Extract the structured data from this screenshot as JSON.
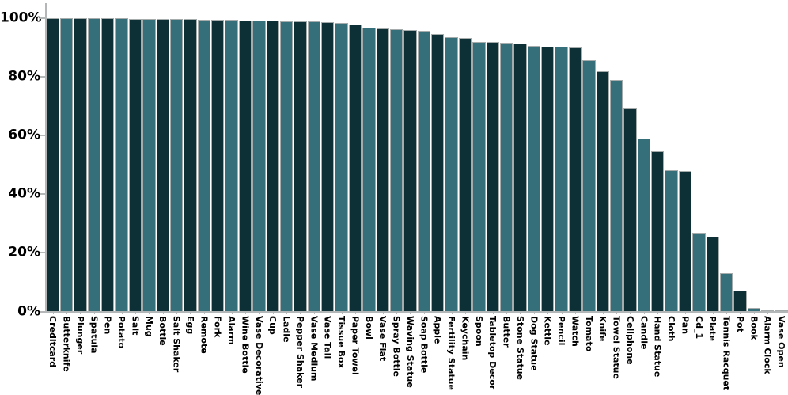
{
  "chart_data": {
    "type": "bar",
    "title": "",
    "xlabel": "",
    "ylabel": "",
    "ylim": [
      0,
      100
    ],
    "grid": false,
    "legend": false,
    "ytick_values": [
      0,
      20,
      40,
      60,
      80,
      100
    ],
    "ytick_labels": [
      "0%",
      "20%",
      "40%",
      "60%",
      "80%",
      "100%"
    ],
    "categories": [
      "Creditcard",
      "Butterknife",
      "Plunger",
      "Spatula",
      "Pen",
      "Potato",
      "Salt",
      "Mug",
      "Bottle",
      "Salt Shaker",
      "Egg",
      "Remote",
      "Fork",
      "Alarm",
      "Wine Bottle",
      "Vase Decorative",
      "Cup",
      "Ladle",
      "Pepper Shaker",
      "Vase Medium",
      "Vase Tall",
      "Tissue Box",
      "Paper Towel",
      "Bowl",
      "Vase Flat",
      "Spray Bottle",
      "Waving Statue",
      "Soap Bottle",
      "Apple",
      "Fertility Statue",
      "Keychain",
      "Spoon",
      "Tabletop Decor",
      "Butter",
      "Stone Statue",
      "Dog Statue",
      "Kettle",
      "Pencil",
      "Watch",
      "Tomato",
      "Knife",
      "Towel Statue",
      "Cellphone",
      "Candle",
      "Hand Statue",
      "Cloth",
      "Pan",
      "Cd_1",
      "Plate",
      "Tennis Racquet",
      "Pot",
      "Book",
      "Alarm Clock",
      "Vase Open"
    ],
    "values": [
      100,
      100,
      100,
      100,
      100,
      99.9,
      99.8,
      99.8,
      99.7,
      99.7,
      99.6,
      99.5,
      99.5,
      99.4,
      99.3,
      99.2,
      99.1,
      99.0,
      98.9,
      98.8,
      98.6,
      98.4,
      97.9,
      96.8,
      96.6,
      96.1,
      96.0,
      95.6,
      94.7,
      93.4,
      93.2,
      92.0,
      91.8,
      91.7,
      91.3,
      90.6,
      90.3,
      90.2,
      89.9,
      85.6,
      81.9,
      78.9,
      69.1,
      58.9,
      54.7,
      48.0,
      47.8,
      26.7,
      25.3,
      13.0,
      7.1,
      1.1,
      0.4,
      0.2
    ],
    "colors": {
      "bar_fill_odd": "#0d3036",
      "bar_fill_even": "#35707a",
      "bar_edge": "#a6abab",
      "axis": "#b3b7b7",
      "tick_label_color": "#000000"
    }
  }
}
